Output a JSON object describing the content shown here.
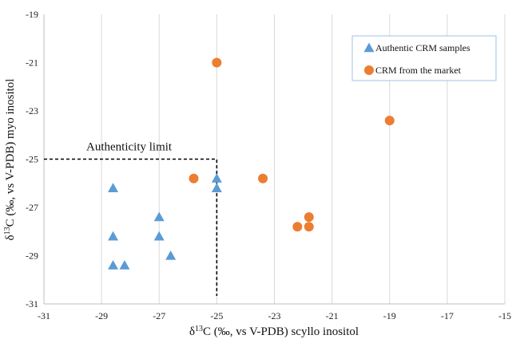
{
  "chart_data": {
    "type": "scatter",
    "xlabel": "δ13C (‰, vs V-PDB) scyllo inositol",
    "ylabel": "δ13C (‰, vs V-PDB) myo inositol",
    "xlim": [
      -31,
      -15
    ],
    "ylim": [
      -31,
      -19
    ],
    "xticks": [
      -31,
      -29,
      -27,
      -25,
      -23,
      -21,
      -19,
      -17,
      -15
    ],
    "yticks": [
      -19,
      -21,
      -23,
      -25,
      -27,
      -29,
      -31
    ],
    "grid": "vertical",
    "legend_position": "top-right",
    "series": [
      {
        "name": "Authentic CRM samples",
        "marker": "triangle",
        "color": "#5b9bd5",
        "points": [
          [
            -28.6,
            -26.2
          ],
          [
            -28.6,
            -28.2
          ],
          [
            -28.6,
            -29.4
          ],
          [
            -28.2,
            -29.4
          ],
          [
            -27.0,
            -27.4
          ],
          [
            -27.0,
            -28.2
          ],
          [
            -26.6,
            -29.0
          ],
          [
            -25.0,
            -25.8
          ],
          [
            -25.0,
            -26.2
          ]
        ]
      },
      {
        "name": "CRM from the market",
        "marker": "circle",
        "color": "#ed7d31",
        "points": [
          [
            -25.0,
            -21.0
          ],
          [
            -25.8,
            -25.8
          ],
          [
            -23.4,
            -25.8
          ],
          [
            -22.2,
            -27.8
          ],
          [
            -21.8,
            -27.4
          ],
          [
            -21.8,
            -27.8
          ],
          [
            -19.0,
            -23.4
          ]
        ]
      }
    ],
    "annotations": [
      {
        "text": "Authenticity limit",
        "threshold_x": -25,
        "threshold_y": -25
      }
    ]
  }
}
